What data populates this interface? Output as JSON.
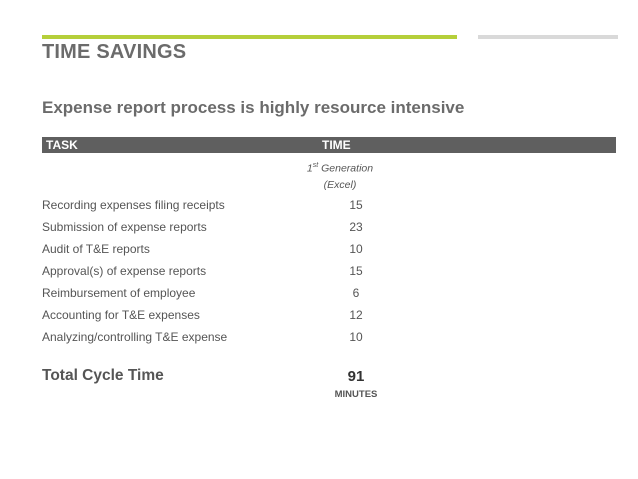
{
  "colors": {
    "accent_green": "#b5cf3a",
    "divider_gray": "#d9d9d9",
    "header_bg": "#5f5f5f"
  },
  "header": {
    "title": "TIME SAVINGS"
  },
  "subtitle": "Expense report process is highly resource intensive",
  "table": {
    "col_task": "TASK",
    "col_time": "TIME",
    "generation": {
      "number": "1",
      "suffix": "st",
      "label": "Generation",
      "sub": "(Excel)"
    },
    "rows": [
      {
        "task": "Recording expenses filing receipts",
        "value": "15"
      },
      {
        "task": "Submission of expense reports",
        "value": "23"
      },
      {
        "task": "Audit of T&E reports",
        "value": "10"
      },
      {
        "task": "Approval(s) of expense reports",
        "value": "15"
      },
      {
        "task": "Reimbursement of employee",
        "value": "6"
      },
      {
        "task": "Accounting for T&E expenses",
        "value": "12"
      },
      {
        "task": "Analyzing/controlling T&E expense",
        "value": "10"
      }
    ],
    "total": {
      "label": "Total Cycle Time",
      "value": "91",
      "unit": "MINUTES"
    }
  }
}
